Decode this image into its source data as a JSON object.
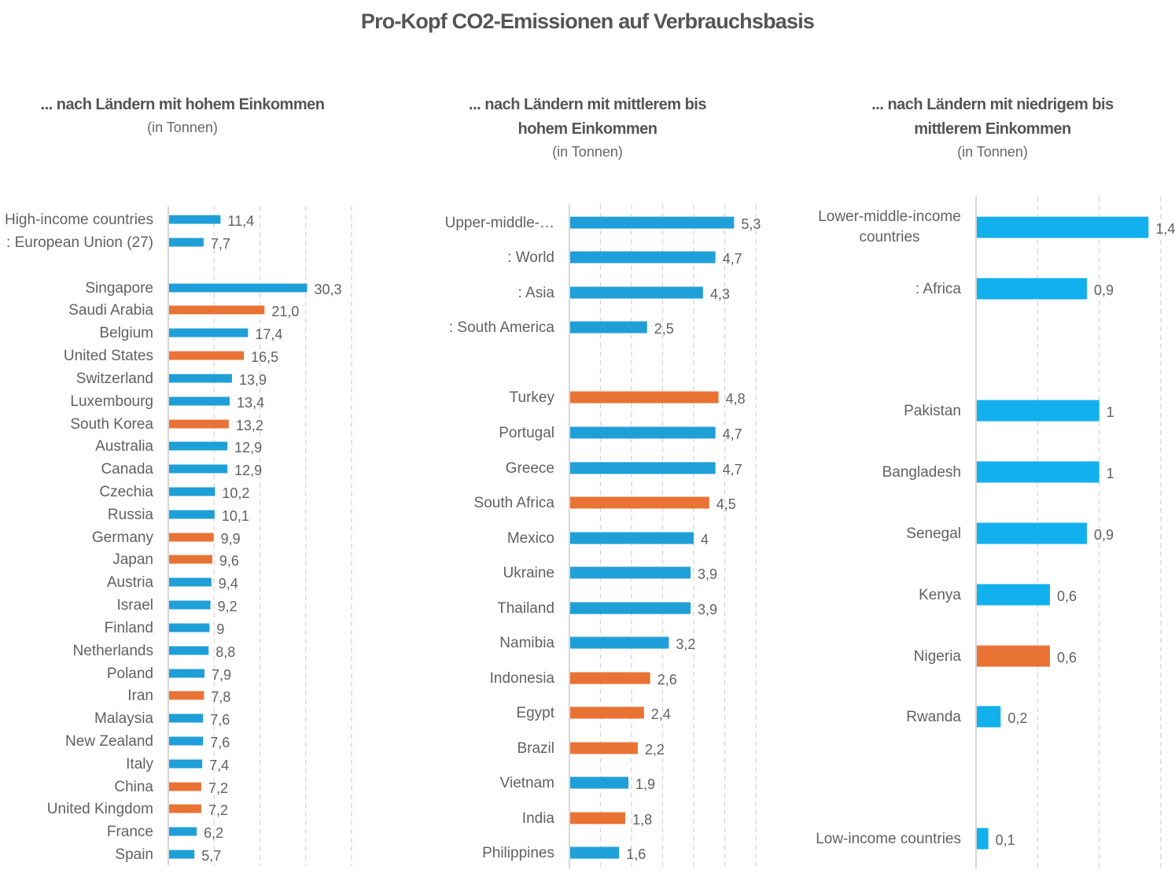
{
  "title": "Pro-Kopf CO2-Emissionen auf Verbrauchsbasis",
  "colors": {
    "standard": "#1f9fd8",
    "highlight": "#e97334",
    "low_income_blue": "#13b0ee",
    "grid": "#d3d3d3"
  },
  "chart_data": [
    {
      "type": "bar",
      "orientation": "horizontal",
      "title": "... nach Ländern mit hohem Einkommen",
      "subtitle": "(in Tonnen)",
      "xlim": [
        0,
        40
      ],
      "grid": true,
      "categories": [
        "High-income countries",
        ": European Union (27)",
        "Singapore",
        "Saudi Arabia",
        "Belgium",
        "United States",
        "Switzerland",
        "Luxembourg",
        "South Korea",
        "Australia",
        "Canada",
        "Czechia",
        "Russia",
        "Germany",
        "Japan",
        "Austria",
        "Israel",
        "Finland",
        "Netherlands",
        "Poland",
        "Iran",
        "Malaysia",
        "New Zealand",
        "Italy",
        "China",
        "United Kingdom",
        "France",
        "Spain"
      ],
      "values": [
        11.4,
        7.7,
        30.3,
        21.0,
        17.4,
        16.5,
        13.9,
        13.4,
        13.2,
        12.9,
        12.9,
        10.2,
        10.1,
        9.9,
        9.6,
        9.4,
        9.2,
        9,
        8.8,
        7.9,
        7.8,
        7.6,
        7.6,
        7.4,
        7.2,
        7.2,
        6.2,
        5.7
      ],
      "value_labels": [
        "11,4",
        "7,7",
        "30,3",
        "21,0",
        "17,4",
        "16,5",
        "13,9",
        "13,4",
        "13,2",
        "12,9",
        "12,9",
        "10,2",
        "10,1",
        "9,9",
        "9,6",
        "9,4",
        "9,2",
        "9",
        "8,8",
        "7,9",
        "7,8",
        "7,6",
        "7,6",
        "7,4",
        "7,2",
        "7,2",
        "6,2",
        "5,7"
      ],
      "highlighted": [
        "Saudi Arabia",
        "United States",
        "South Korea",
        "Germany",
        "Japan",
        "Iran",
        "China",
        "United Kingdom"
      ]
    },
    {
      "type": "bar",
      "orientation": "horizontal",
      "title": "... nach Ländern mit mittlerem bis hohem Einkommen",
      "subtitle": "(in Tonnen)",
      "xlim": [
        0,
        6
      ],
      "grid": true,
      "categories": [
        "Upper-middle-…",
        ": World",
        ": Asia",
        ": South America",
        "Turkey",
        "Portugal",
        "Greece",
        "South Africa",
        "Mexico",
        "Ukraine",
        "Thailand",
        "Namibia",
        "Indonesia",
        "Egypt",
        "Brazil",
        "Vietnam",
        "India",
        "Philippines"
      ],
      "values": [
        5.3,
        4.7,
        4.3,
        2.5,
        4.8,
        4.7,
        4.7,
        4.5,
        4,
        3.9,
        3.9,
        3.2,
        2.6,
        2.4,
        2.2,
        1.9,
        1.8,
        1.6
      ],
      "value_labels": [
        "5,3",
        "4,7",
        "4,3",
        "2,5",
        "4,8",
        "4,7",
        "4,7",
        "4,5",
        "4",
        "3,9",
        "3,9",
        "3,2",
        "2,6",
        "2,4",
        "2,2",
        "1,9",
        "1,8",
        "1,6"
      ],
      "highlighted": [
        "Turkey",
        "South Africa",
        "Indonesia",
        "Egypt",
        "Brazil",
        "India"
      ]
    },
    {
      "type": "bar",
      "orientation": "horizontal",
      "title": "... nach Ländern mit niedrigem bis mittlerem Einkommen",
      "subtitle": "(in Tonnen)",
      "xlim": [
        0,
        1.5
      ],
      "grid": true,
      "categories": [
        "Lower-middle-income countries",
        ": Africa",
        "Pakistan",
        "Bangladesh",
        "Senegal",
        "Kenya",
        "Nigeria",
        "Rwanda",
        "Low-income countries"
      ],
      "values": [
        1.4,
        0.9,
        1,
        1,
        0.9,
        0.6,
        0.6,
        0.2,
        0.1
      ],
      "value_labels": [
        "1,4",
        "0,9",
        "1",
        "1",
        "0,9",
        "0,6",
        "0,6",
        "0,2",
        "0,1"
      ],
      "highlighted": [
        "Nigeria"
      ]
    }
  ]
}
